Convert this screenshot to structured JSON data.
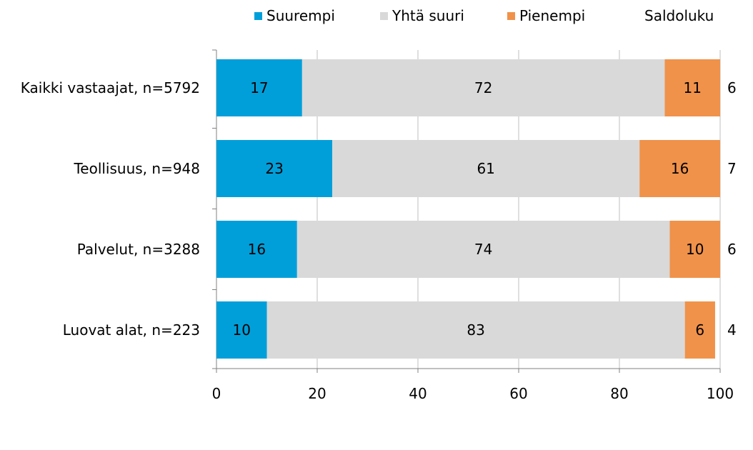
{
  "chart_data": {
    "type": "bar",
    "orientation": "horizontal",
    "stacked": true,
    "categories": [
      "Kaikki vastaajat, n=5792",
      "Teollisuus, n=948",
      "Palvelut, n=3288",
      "Luovat alat, n=223"
    ],
    "series": [
      {
        "name": "Suurempi",
        "values": [
          17,
          23,
          16,
          10
        ],
        "color": "#009fda"
      },
      {
        "name": "Yhtä suuri",
        "values": [
          72,
          61,
          74,
          83
        ],
        "color": "#d9d9d9"
      },
      {
        "name": "Pienempi",
        "values": [
          11,
          16,
          10,
          6
        ],
        "color": "#f0924a"
      }
    ],
    "saldoluku": {
      "name": "Saldoluku",
      "values": [
        6,
        7,
        6,
        4
      ]
    },
    "xlim": [
      0,
      100
    ],
    "xticks": [
      "0",
      "20",
      "40",
      "60",
      "80",
      "100"
    ],
    "grid": true,
    "legend_position": "top"
  }
}
